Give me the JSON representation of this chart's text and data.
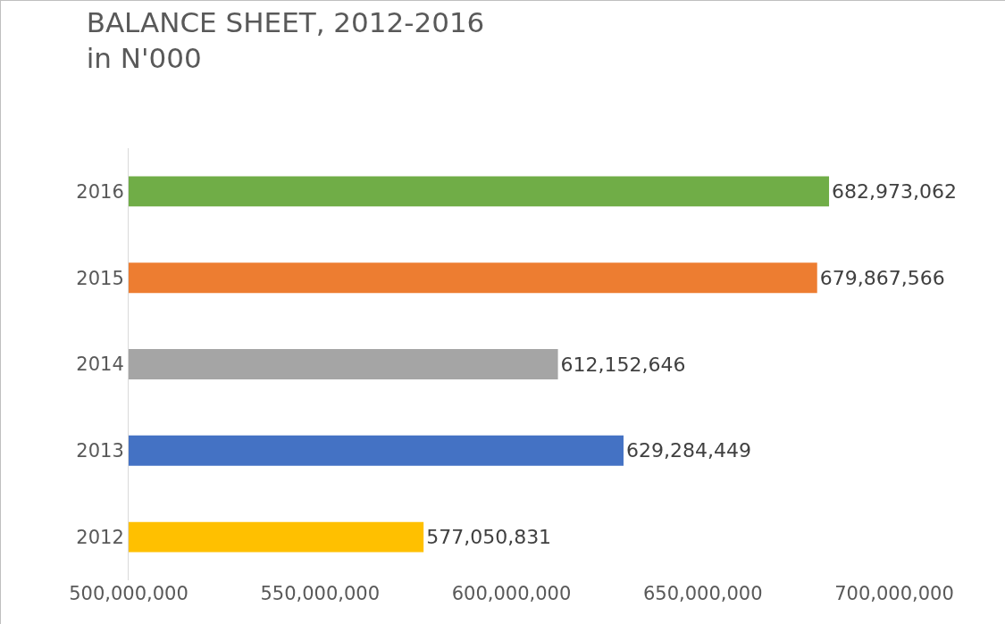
{
  "chart_data": {
    "type": "bar",
    "orientation": "horizontal",
    "title": "BALANCE SHEET, 2012-2016",
    "subtitle": "in N'000",
    "categories": [
      "2016",
      "2015",
      "2014",
      "2013",
      "2012"
    ],
    "values": [
      682973062,
      679867566,
      612152646,
      629284449,
      577050831
    ],
    "colors": [
      "#70ad47",
      "#ed7d31",
      "#a5a5a5",
      "#4472c4",
      "#ffc000"
    ],
    "xlim": [
      500000000,
      700000000
    ],
    "xticks": [
      {
        "value": 500000000,
        "label": "500,000,000"
      },
      {
        "value": 550000000,
        "label": "550,000,000"
      },
      {
        "value": 600000000,
        "label": "600,000,000"
      },
      {
        "value": 650000000,
        "label": "650,000,000"
      },
      {
        "value": 700000000,
        "label": "700,000,000"
      }
    ],
    "value_labels": [
      "682,973,062",
      "679,867,566",
      "612,152,646",
      "629,284,449",
      "577,050,831"
    ],
    "grid": false
  }
}
